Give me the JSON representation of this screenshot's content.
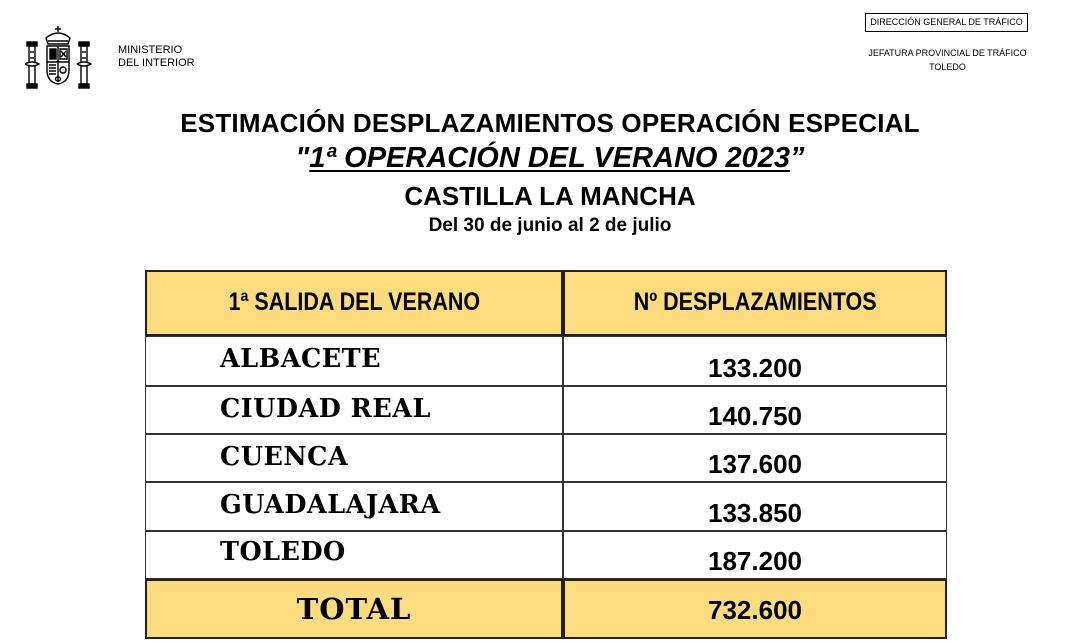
{
  "header": {
    "ministry_line1": "MINISTERIO",
    "ministry_line2": "DEL INTERIOR",
    "dgt_label": "DIRECCIÓN GENERAL DE TRÁFICO",
    "jefatura_line1": "JEFATURA PROVINCIAL DE TRÁFICO",
    "jefatura_line2": "TOLEDO",
    "crest_icon": "spain-coat-of-arms-icon"
  },
  "title": {
    "line1": "ESTIMACIÓN DESPLAZAMIENTOS OPERACIÓN ESPECIAL",
    "line2_open_quote": "\"",
    "line2": "1ª OPERACIÓN DEL VERANO 2023",
    "line2_close_quote": "”",
    "line3": "CASTILLA LA MANCHA",
    "line4": "Del 30 de junio al 2 de julio"
  },
  "table": {
    "header_color": "#fddc7f",
    "columns": [
      "1ª SALIDA DEL VERANO",
      "Nº DESPLAZAMIENTOS"
    ],
    "rows": [
      {
        "province": "ALBACETE",
        "value": "133.200"
      },
      {
        "province": "CIUDAD REAL",
        "value": "140.750"
      },
      {
        "province": "CUENCA",
        "value": "137.600"
      },
      {
        "province": "GUADALAJARA",
        "value": "133.850"
      },
      {
        "province": "TOLEDO",
        "value": "187.200"
      }
    ],
    "total_label": "TOTAL",
    "total_value": "732.600"
  }
}
